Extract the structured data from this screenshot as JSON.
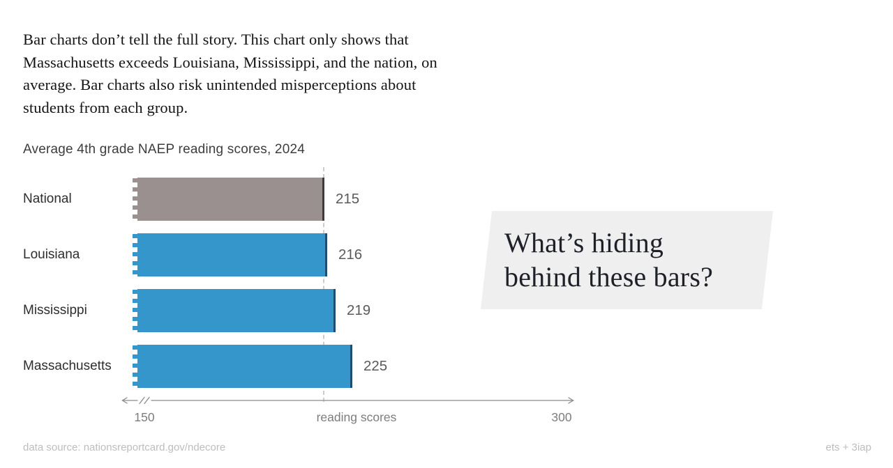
{
  "intro": {
    "lines": [
      "Bar charts don’t tell the full story. This chart only shows that",
      "Massachusetts exceeds Louisiana, Mississippi, and the nation, on",
      "average. Bar charts also risk unintended misperceptions about",
      "students from each group."
    ]
  },
  "chart_data": {
    "type": "bar",
    "orientation": "horizontal",
    "title": "Average 4th grade NAEP reading scores, 2024",
    "categories": [
      "National",
      "Louisiana",
      "Mississippi",
      "Massachusetts"
    ],
    "values": [
      215,
      216,
      219,
      225
    ],
    "series": [
      {
        "name": "Average 4th grade NAEP reading score, 2024",
        "values": [
          215,
          216,
          219,
          225
        ]
      }
    ],
    "bar_colors": [
      "#9a908f",
      "#3496cb",
      "#3496cb",
      "#3496cb"
    ],
    "bar_edge_colors": [
      "#403a39",
      "#1d4f72",
      "#1d4f72",
      "#1d4f72"
    ],
    "xlabel": "reading scores",
    "xlim": [
      150,
      300
    ],
    "x_tick_labels": [
      "150",
      "300"
    ],
    "axis_break_at_left": true,
    "reference_line_value": 215,
    "grid": "off",
    "legend": "none"
  },
  "callout": {
    "lines": [
      "What’s hiding",
      "behind these bars?"
    ],
    "background_color": "#f0efef"
  },
  "footer": {
    "source": "data source: nationsreportcard.gov/ndecore",
    "credit": "ets + 3iap"
  },
  "colors": {
    "accent_blue": "#3496cb",
    "national_gray": "#9a908f",
    "reference_line_gray": "#cccccc",
    "axis_gray": "#8a8a8a",
    "intro_text": "#141414",
    "value_label_gray": "#5a5a5a",
    "footer_gray": "#bdbdbd"
  }
}
